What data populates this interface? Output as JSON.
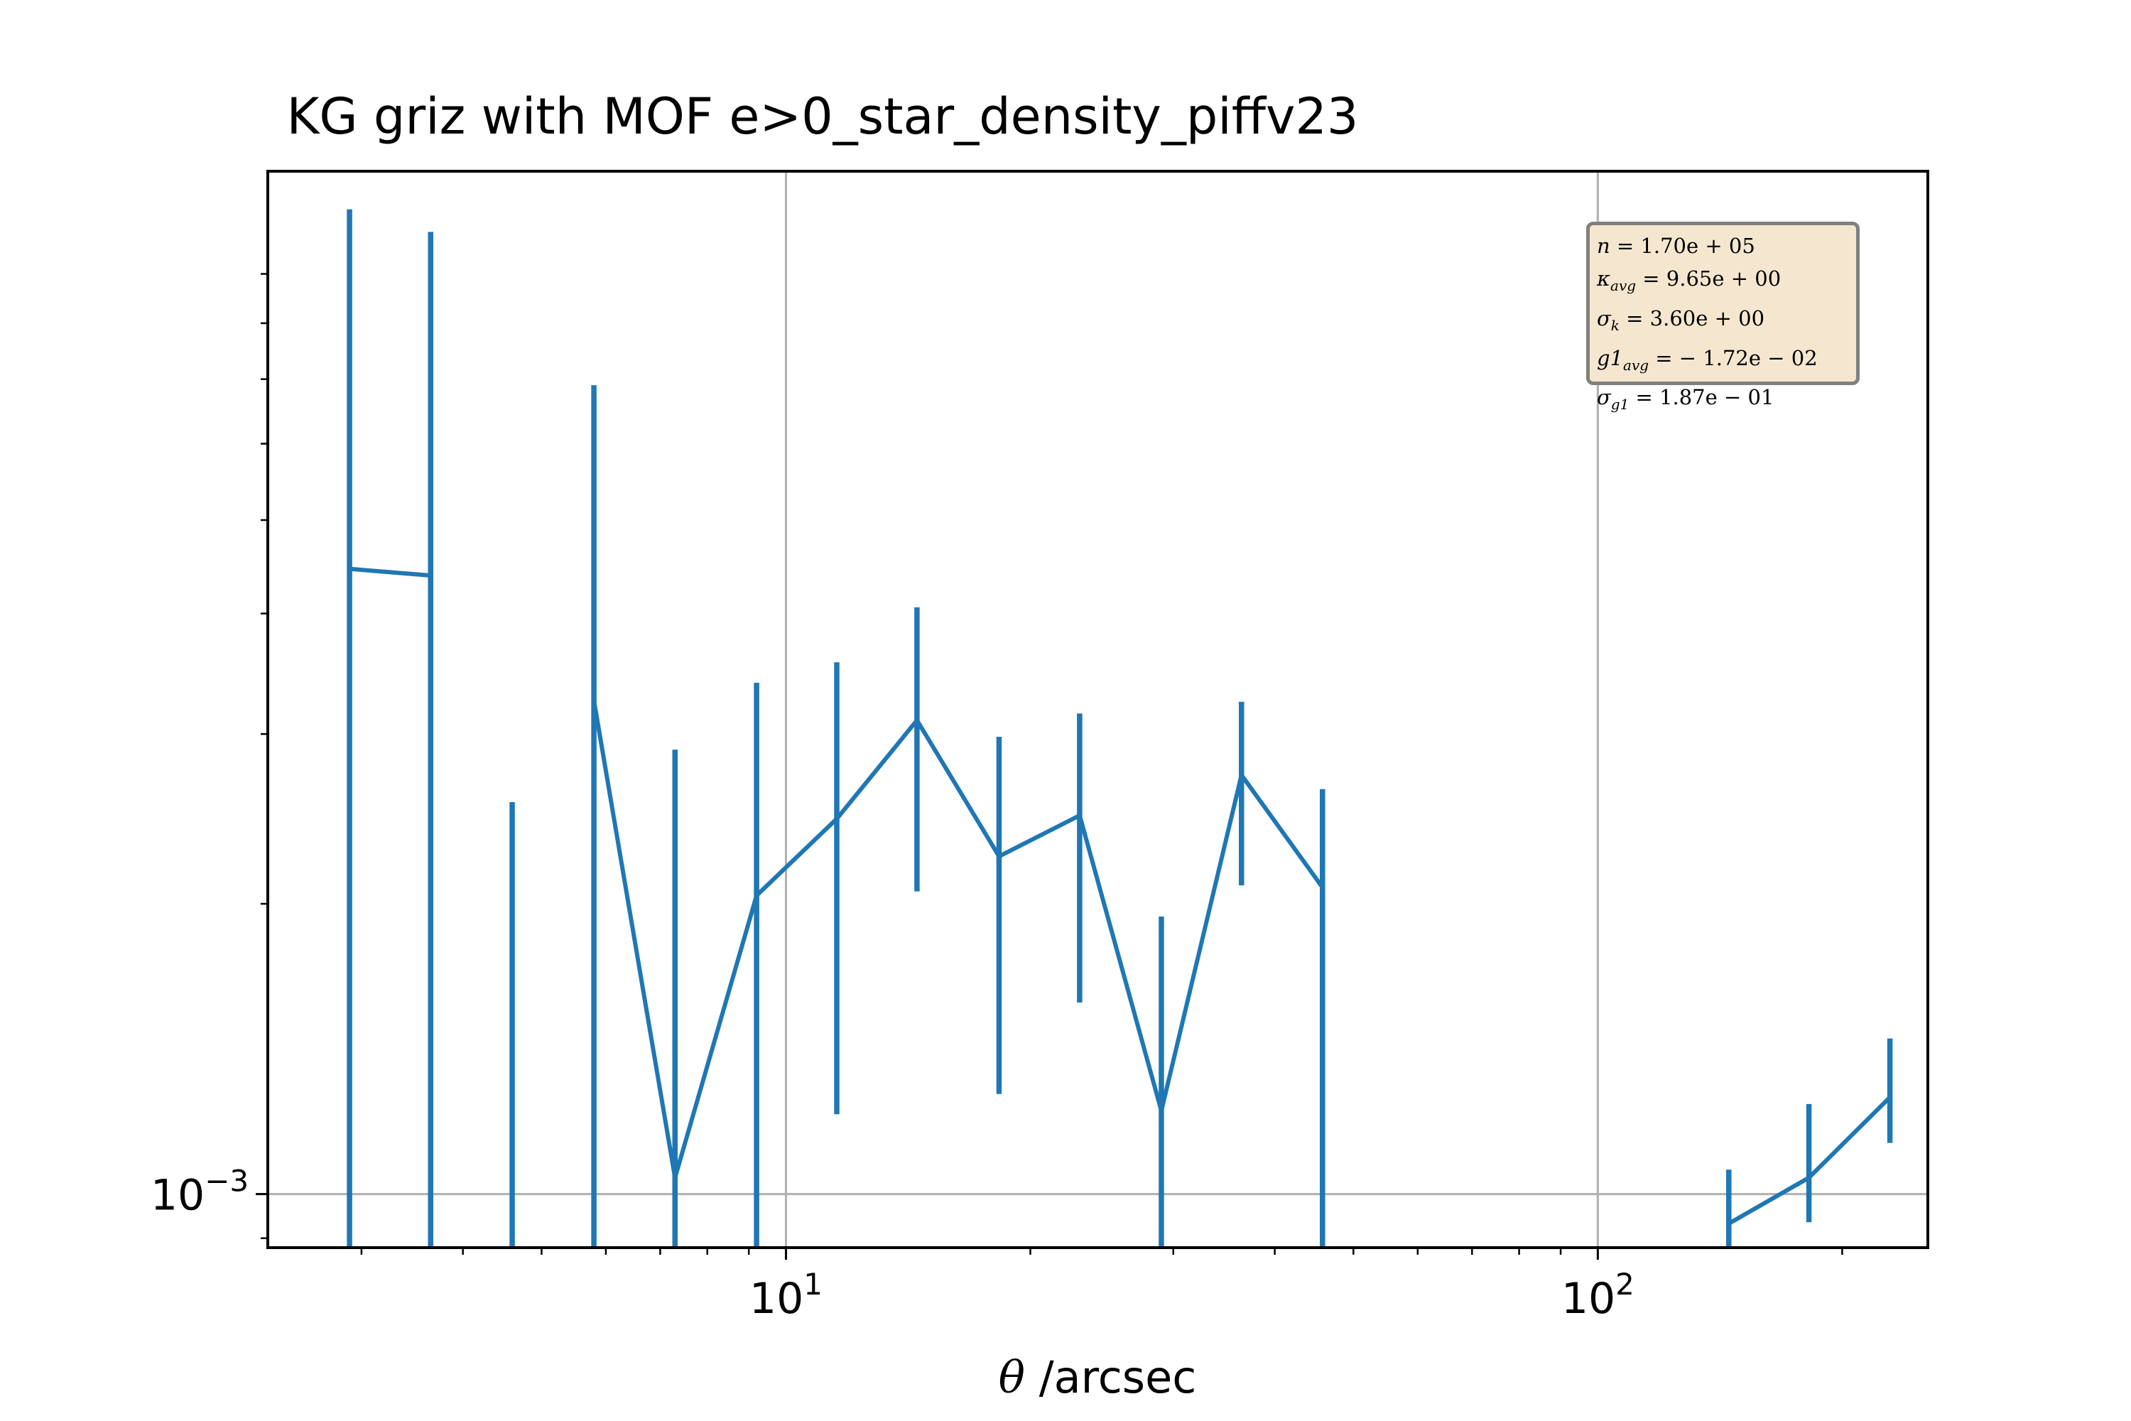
{
  "chart_data": {
    "type": "line",
    "title": "KG griz with MOF e>0_star_density_piffv23",
    "xlabel_symbol": "θ",
    "xlabel_unit": " /arcsec",
    "x_scale": "log",
    "y_scale": "log",
    "xlim": [
      2.3,
      255
    ],
    "ylim": [
      0.00088,
      0.0115
    ],
    "x_ticks": [
      {
        "value": 10,
        "base": "10",
        "exp": "1"
      },
      {
        "value": 100,
        "base": "10",
        "exp": "2"
      }
    ],
    "y_ticks": [
      {
        "value": 0.001,
        "base": "10",
        "exp": "−3"
      }
    ],
    "grid": true,
    "color": "#1f77b4",
    "series": [
      {
        "points": [
          {
            "x": 2.9,
            "y": 0.00445,
            "lo": null,
            "hi": 0.0105
          },
          {
            "x": 3.65,
            "y": 0.00438,
            "lo": null,
            "hi": 0.00995
          },
          {
            "x": 4.6,
            "y": null,
            "lo": null,
            "hi": 0.00255
          },
          {
            "x": 5.8,
            "y": 0.00325,
            "lo": null,
            "hi": 0.0069
          },
          {
            "x": 7.3,
            "y": 0.00104,
            "lo": null,
            "hi": 0.00289
          },
          {
            "x": 9.2,
            "y": 0.00204,
            "lo": null,
            "hi": 0.00339
          },
          {
            "x": 11.55,
            "y": 0.00245,
            "lo": 0.00121,
            "hi": 0.00356
          },
          {
            "x": 14.5,
            "y": 0.0031,
            "lo": 0.00206,
            "hi": 0.00406
          },
          {
            "x": 18.3,
            "y": 0.00224,
            "lo": 0.00127,
            "hi": 0.00298
          },
          {
            "x": 23.0,
            "y": 0.00247,
            "lo": 0.00158,
            "hi": 0.00315
          },
          {
            "x": 29.0,
            "y": 0.00122,
            "lo": null,
            "hi": 0.00194
          },
          {
            "x": 36.4,
            "y": 0.00272,
            "lo": 0.00209,
            "hi": 0.00324
          },
          {
            "x": 45.8,
            "y": 0.00208,
            "lo": null,
            "hi": 0.00263
          },
          {
            "x": 145,
            "y": 0.000932,
            "lo": null,
            "hi": 0.00106
          },
          {
            "x": 182,
            "y": 0.00104,
            "lo": 0.000935,
            "hi": 0.00124
          },
          {
            "x": 229,
            "y": 0.00126,
            "lo": 0.00113,
            "hi": 0.00145
          }
        ]
      }
    ],
    "stats_box": {
      "position": "top-right",
      "lines": [
        {
          "label": "n",
          "sub": "",
          "value": "= 1.70e + 05"
        },
        {
          "label": "κ",
          "sub": "avg",
          "value": "= 9.65e + 00"
        },
        {
          "label": "σ",
          "sub": "k",
          "value": "= 3.60e + 00"
        },
        {
          "label": "g1",
          "sub": "avg",
          "value": "= − 1.72e − 02"
        },
        {
          "label": "σ",
          "sub": "g1",
          "value": "= 1.87e − 01"
        }
      ]
    }
  }
}
